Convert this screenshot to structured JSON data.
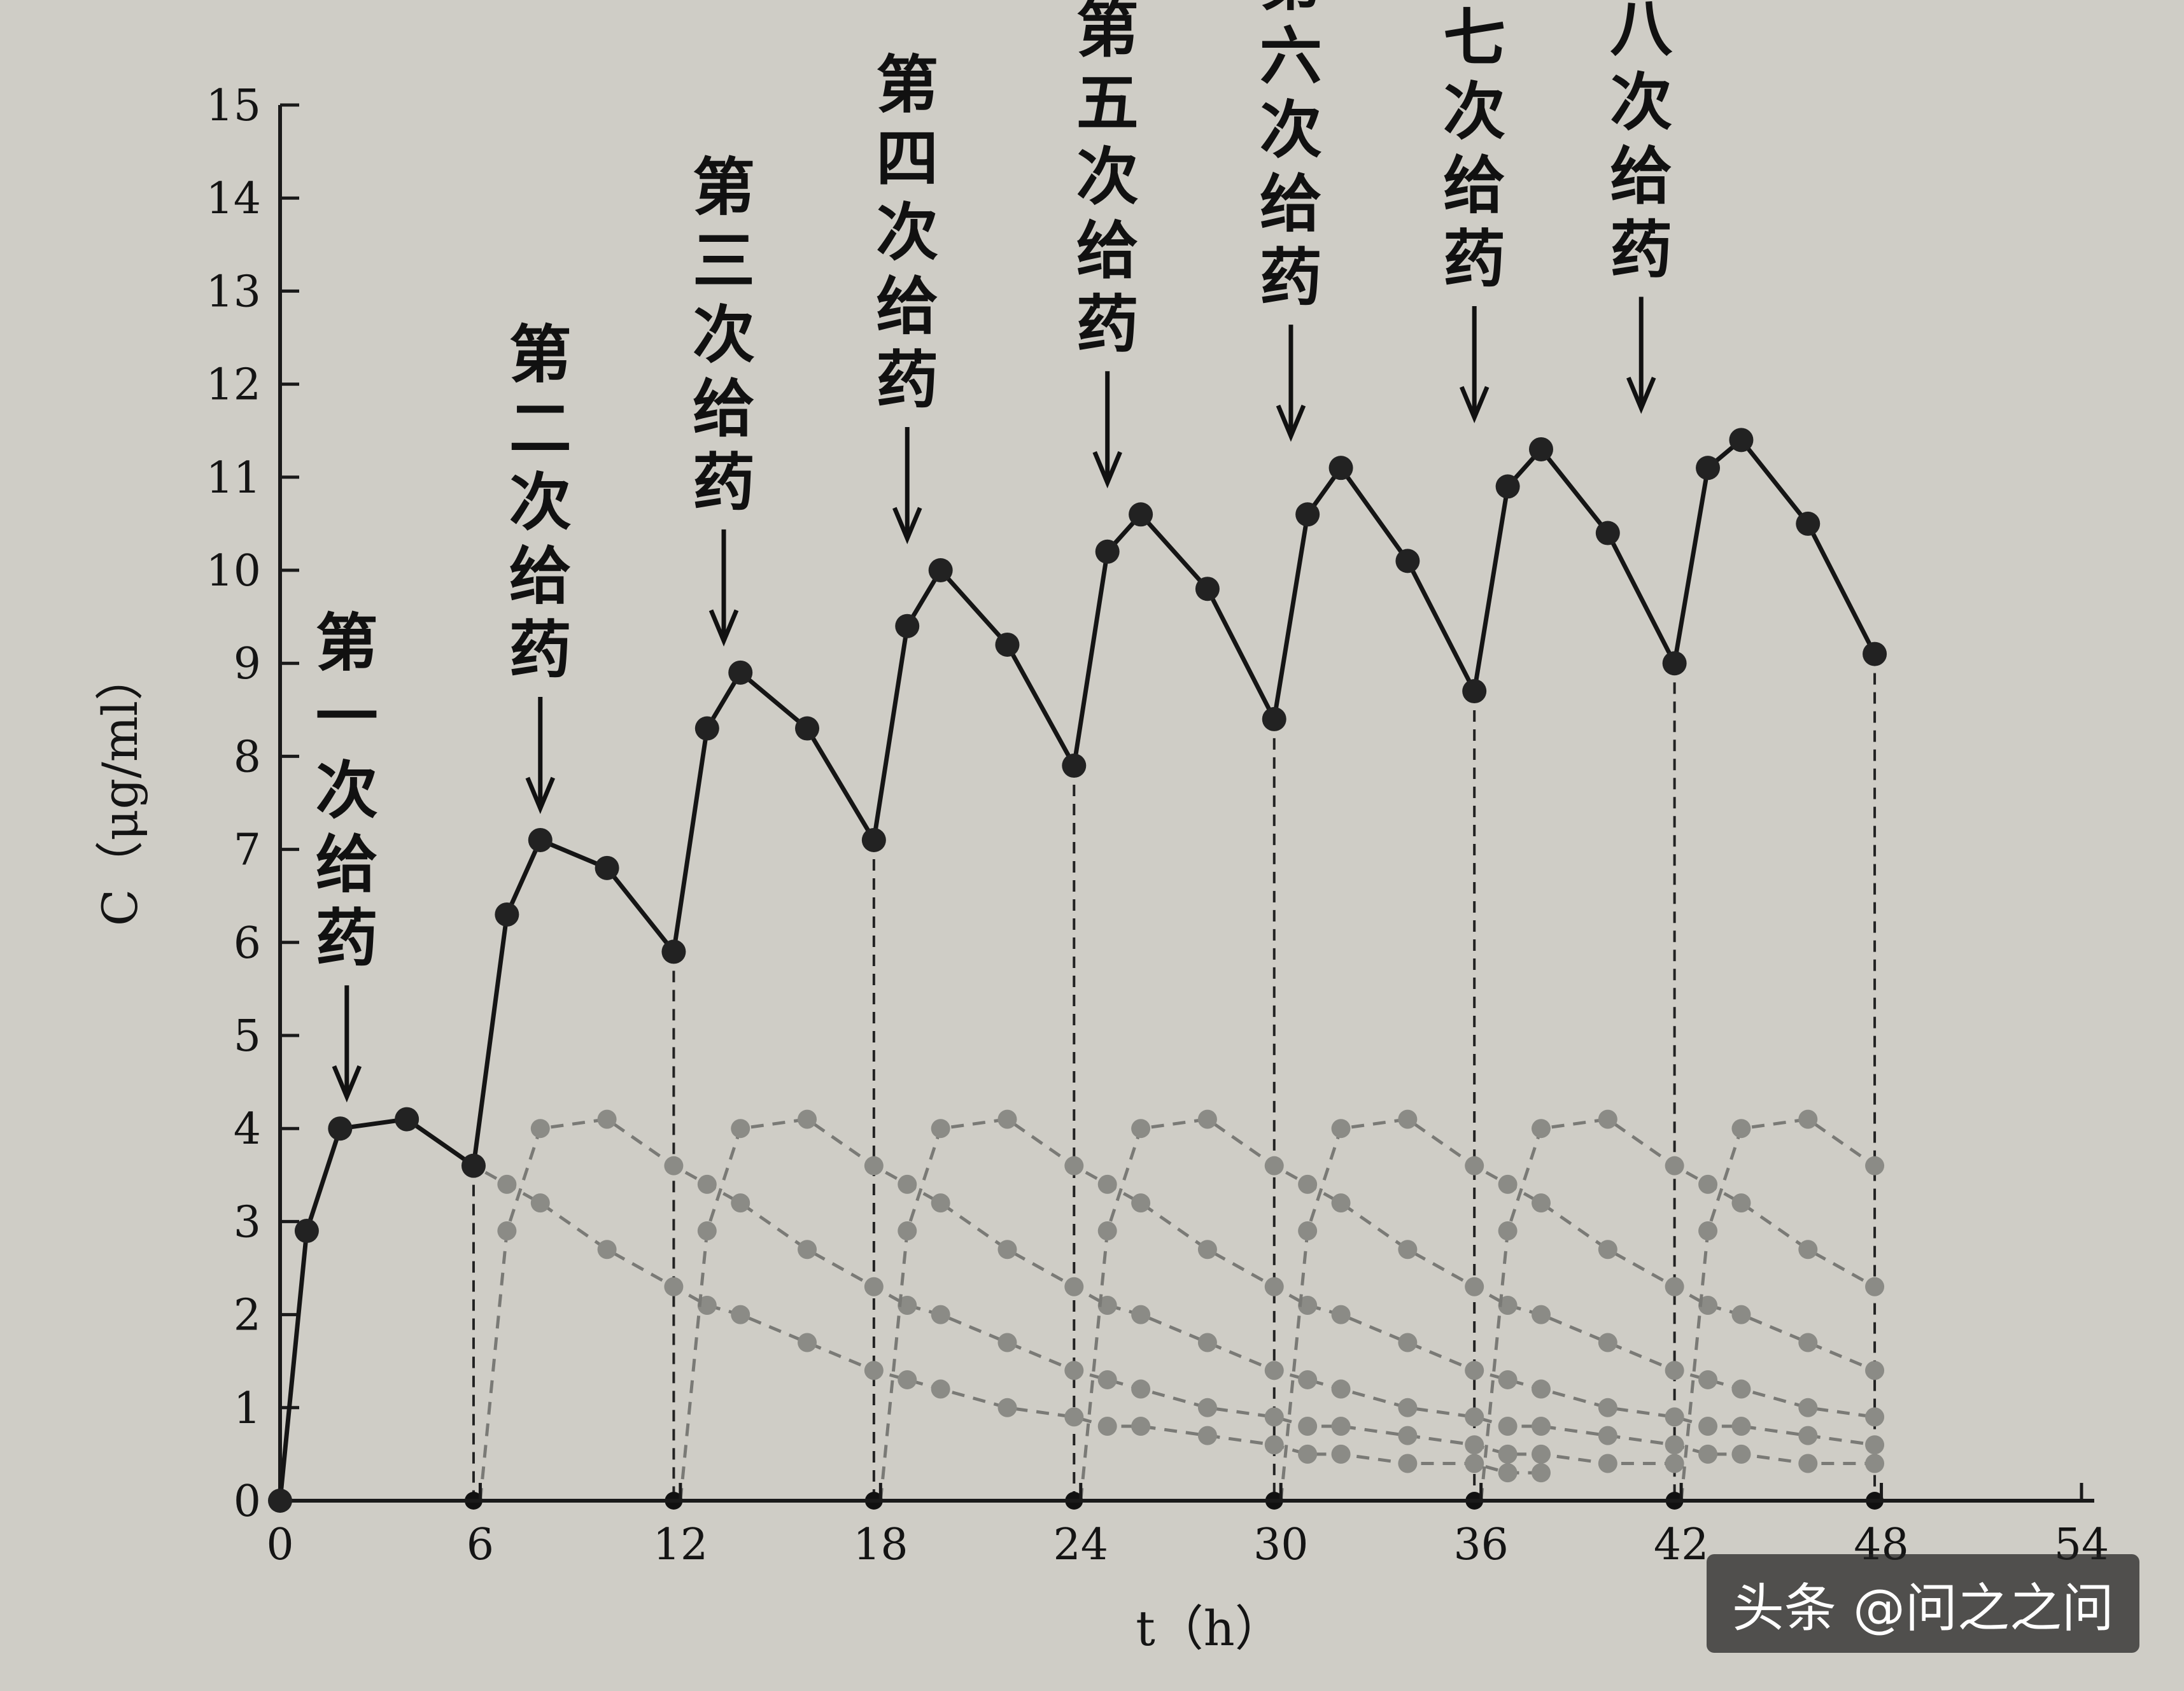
{
  "chart_data": {
    "type": "line",
    "xlabel": "t（h）",
    "ylabel": "C（μg/ml）",
    "xlim": [
      0,
      54
    ],
    "ylim": [
      0,
      15
    ],
    "xticks": [
      0,
      6,
      12,
      18,
      24,
      30,
      36,
      42,
      48,
      54
    ],
    "yticks": [
      0,
      1,
      2,
      3,
      4,
      5,
      6,
      7,
      8,
      9,
      10,
      11,
      12,
      13,
      14,
      15
    ],
    "grid": false,
    "dosing_interval_h": 6,
    "series": [
      {
        "x": [
          0,
          0.8,
          1.8,
          3.8,
          5.8,
          6.8,
          7.8,
          9.8,
          11.8,
          12.8,
          13.8,
          15.8,
          17.8,
          18.8,
          19.8,
          21.8,
          23.8,
          24.8,
          25.8,
          27.8,
          29.8,
          30.8,
          31.8,
          33.8,
          35.8,
          36.8,
          37.8,
          39.8,
          41.8,
          42.8,
          43.8,
          45.8,
          47.8
        ],
        "y": [
          0,
          2.9,
          4.0,
          4.1,
          3.6,
          6.3,
          7.1,
          6.8,
          5.9,
          8.3,
          8.9,
          8.3,
          7.1,
          9.4,
          10.0,
          9.2,
          7.9,
          10.2,
          10.6,
          9.8,
          8.4,
          10.6,
          11.1,
          10.1,
          8.7,
          10.9,
          11.3,
          10.4,
          9.0,
          11.1,
          11.4,
          10.5,
          9.1
        ]
      }
    ],
    "single_dose_curves": [
      {
        "x": [
          0,
          0.8,
          1.8,
          3.8,
          5.8,
          6.8,
          7.8,
          9.8,
          11.8,
          12.8,
          13.8,
          15.8,
          17.8,
          18.8,
          19.8,
          21.8,
          23.8,
          24.8,
          25.8,
          27.8,
          29.8,
          30.8,
          31.8,
          33.8,
          35.8,
          36.8,
          37.8
        ],
        "y": [
          0,
          2.9,
          4.0,
          4.1,
          3.6,
          3.4,
          3.2,
          2.7,
          2.3,
          2.1,
          2.0,
          1.7,
          1.4,
          1.3,
          1.2,
          1.0,
          0.9,
          0.8,
          0.8,
          0.7,
          0.6,
          0.5,
          0.5,
          0.4,
          0.4,
          0.3,
          0.3
        ]
      },
      {
        "x": [
          6,
          6.8,
          7.8,
          9.8,
          11.8,
          12.8,
          13.8,
          15.8,
          17.8,
          18.8,
          19.8,
          21.8,
          23.8,
          24.8,
          25.8,
          27.8,
          29.8,
          30.8,
          31.8,
          33.8,
          35.8,
          36.8,
          37.8,
          39.8,
          41.8
        ],
        "y": [
          0,
          2.9,
          4.0,
          4.1,
          3.6,
          3.4,
          3.2,
          2.7,
          2.3,
          2.1,
          2.0,
          1.7,
          1.4,
          1.3,
          1.2,
          1.0,
          0.9,
          0.8,
          0.8,
          0.7,
          0.6,
          0.5,
          0.5,
          0.4,
          0.4
        ]
      },
      {
        "x": [
          12,
          12.8,
          13.8,
          15.8,
          17.8,
          18.8,
          19.8,
          21.8,
          23.8,
          24.8,
          25.8,
          27.8,
          29.8,
          30.8,
          31.8,
          33.8,
          35.8,
          36.8,
          37.8,
          39.8,
          41.8,
          42.8,
          43.8,
          45.8,
          47.8
        ],
        "y": [
          0,
          2.9,
          4.0,
          4.1,
          3.6,
          3.4,
          3.2,
          2.7,
          2.3,
          2.1,
          2.0,
          1.7,
          1.4,
          1.3,
          1.2,
          1.0,
          0.9,
          0.8,
          0.8,
          0.7,
          0.6,
          0.5,
          0.5,
          0.4,
          0.4
        ]
      },
      {
        "x": [
          18,
          18.8,
          19.8,
          21.8,
          23.8,
          24.8,
          25.8,
          27.8,
          29.8,
          30.8,
          31.8,
          33.8,
          35.8,
          36.8,
          37.8,
          39.8,
          41.8,
          42.8,
          43.8,
          45.8,
          47.8
        ],
        "y": [
          0,
          2.9,
          4.0,
          4.1,
          3.6,
          3.4,
          3.2,
          2.7,
          2.3,
          2.1,
          2.0,
          1.7,
          1.4,
          1.3,
          1.2,
          1.0,
          0.9,
          0.8,
          0.8,
          0.7,
          0.6
        ]
      },
      {
        "x": [
          24,
          24.8,
          25.8,
          27.8,
          29.8,
          30.8,
          31.8,
          33.8,
          35.8,
          36.8,
          37.8,
          39.8,
          41.8,
          42.8,
          43.8,
          45.8,
          47.8
        ],
        "y": [
          0,
          2.9,
          4.0,
          4.1,
          3.6,
          3.4,
          3.2,
          2.7,
          2.3,
          2.1,
          2.0,
          1.7,
          1.4,
          1.3,
          1.2,
          1.0,
          0.9
        ]
      },
      {
        "x": [
          30,
          30.8,
          31.8,
          33.8,
          35.8,
          36.8,
          37.8,
          39.8,
          41.8,
          42.8,
          43.8,
          45.8,
          47.8
        ],
        "y": [
          0,
          2.9,
          4.0,
          4.1,
          3.6,
          3.4,
          3.2,
          2.7,
          2.3,
          2.1,
          2.0,
          1.7,
          1.4
        ]
      },
      {
        "x": [
          36,
          36.8,
          37.8,
          39.8,
          41.8,
          42.8,
          43.8,
          45.8,
          47.8
        ],
        "y": [
          0,
          2.9,
          4.0,
          4.1,
          3.6,
          3.4,
          3.2,
          2.7,
          2.3
        ]
      },
      {
        "x": [
          42,
          42.8,
          43.8,
          45.8,
          47.8
        ],
        "y": [
          0,
          2.9,
          4.0,
          4.1,
          3.6
        ]
      }
    ],
    "annotations": [
      {
        "text": "第一次给药",
        "x": 2.0,
        "y": 4.0
      },
      {
        "text": "第二次给药",
        "x": 7.8,
        "y": 7.1
      },
      {
        "text": "第三次给药",
        "x": 13.3,
        "y": 8.9
      },
      {
        "text": "第四次给药",
        "x": 18.8,
        "y": 10.0
      },
      {
        "text": "第五次给药",
        "x": 24.8,
        "y": 10.6
      },
      {
        "text": "第六次给药",
        "x": 30.3,
        "y": 11.1
      },
      {
        "text": "第七次给药",
        "x": 35.8,
        "y": 11.3
      },
      {
        "text": "第八次给药",
        "x": 40.8,
        "y": 11.4
      }
    ],
    "drop_lines_x": [
      6,
      12,
      18,
      24,
      30,
      36,
      42,
      48
    ]
  },
  "watermark": "头条 @问之之问",
  "colors": {
    "background": "#cfcdc6",
    "main_line": "#151515",
    "component_line": "#7a7a76"
  }
}
